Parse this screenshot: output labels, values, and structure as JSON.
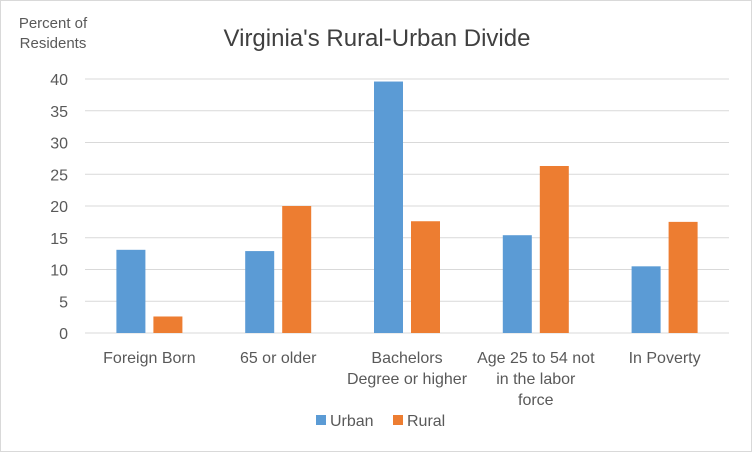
{
  "chart_data": {
    "type": "bar",
    "title": "Virginia's Rural-Urban Divide",
    "ylabel": [
      "Percent of",
      "Residents"
    ],
    "xlabel": "",
    "ylim": [
      0,
      40
    ],
    "yticks": [
      0,
      5,
      10,
      15,
      20,
      25,
      30,
      35,
      40
    ],
    "grid": true,
    "legend_position": "bottom",
    "categories": [
      [
        "Foreign Born"
      ],
      [
        "65 or older"
      ],
      [
        "Bachelors",
        "Degree or higher"
      ],
      [
        "Age 25 to 54 not",
        "in the labor",
        "force"
      ],
      [
        "In Poverty"
      ]
    ],
    "series": [
      {
        "name": "Urban",
        "color": "#5b9bd5",
        "values": [
          13.1,
          12.9,
          39.6,
          15.4,
          10.5
        ]
      },
      {
        "name": "Rural",
        "color": "#ed7d31",
        "values": [
          2.6,
          20.0,
          17.6,
          26.3,
          17.5
        ]
      }
    ]
  }
}
